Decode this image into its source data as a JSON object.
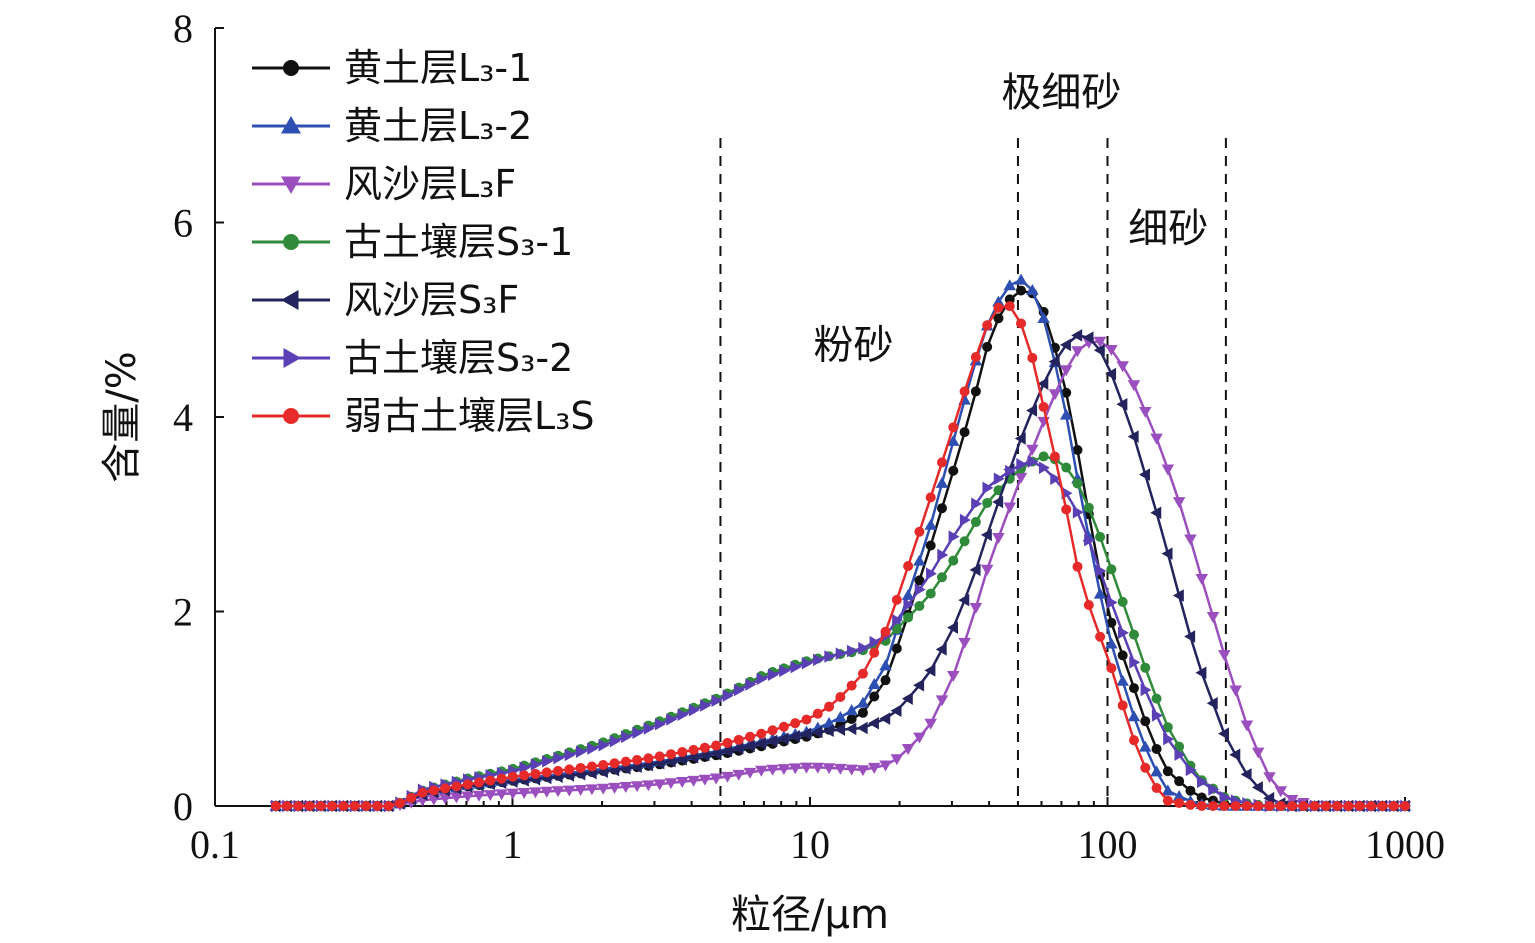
{
  "chart_data": {
    "type": "line",
    "title": "",
    "xlabel": "粒径/μm",
    "ylabel": "含量/%",
    "xscale": "log",
    "xlim": [
      0.1,
      1000
    ],
    "ylim": [
      0,
      8
    ],
    "xticks": [
      0.1,
      1,
      10,
      100,
      1000
    ],
    "xtick_labels": [
      "0.1",
      "1",
      "10",
      "100",
      "1000"
    ],
    "yticks": [
      0,
      2,
      4,
      6,
      8
    ],
    "ytick_labels": [
      "0",
      "2",
      "4",
      "6",
      "8"
    ],
    "grid": false,
    "legend_position": "top-left",
    "reference_lines": [
      {
        "x": 5,
        "style": "dashed"
      },
      {
        "x": 50,
        "style": "dashed"
      },
      {
        "x": 100,
        "style": "dashed"
      },
      {
        "x": 250,
        "style": "dashed"
      }
    ],
    "annotations": [
      {
        "text": "粉砂",
        "x": 14,
        "y": 4.6
      },
      {
        "text": "极细砂",
        "x": 70,
        "y": 7.2
      },
      {
        "text": "细砂",
        "x": 160,
        "y": 5.8
      }
    ],
    "series": [
      {
        "name": "黄土层L₃-1",
        "color": "#111111",
        "marker": "circle",
        "points": [
          [
            0.16,
            0
          ],
          [
            0.2,
            0
          ],
          [
            0.3,
            0
          ],
          [
            0.4,
            0
          ],
          [
            0.5,
            0.12
          ],
          [
            0.7,
            0.2
          ],
          [
            1,
            0.26
          ],
          [
            2,
            0.36
          ],
          [
            3,
            0.42
          ],
          [
            5,
            0.53
          ],
          [
            7,
            0.62
          ],
          [
            10,
            0.72
          ],
          [
            12,
            0.8
          ],
          [
            15,
            0.95
          ],
          [
            18,
            1.3
          ],
          [
            20,
            1.7
          ],
          [
            25,
            2.6
          ],
          [
            30,
            3.4
          ],
          [
            35,
            4.1
          ],
          [
            40,
            4.8
          ],
          [
            45,
            5.15
          ],
          [
            50,
            5.3
          ],
          [
            55,
            5.3
          ],
          [
            60,
            5.15
          ],
          [
            70,
            4.5
          ],
          [
            80,
            3.6
          ],
          [
            90,
            2.7
          ],
          [
            100,
            2.0
          ],
          [
            120,
            1.3
          ],
          [
            140,
            0.7
          ],
          [
            160,
            0.35
          ],
          [
            200,
            0.1
          ],
          [
            250,
            0.02
          ],
          [
            300,
            0
          ],
          [
            500,
            0
          ],
          [
            1000,
            0
          ]
        ]
      },
      {
        "name": "黄土层L₃-2",
        "color": "#2e4fb2",
        "marker": "triangle-up",
        "points": [
          [
            0.16,
            0
          ],
          [
            0.2,
            0
          ],
          [
            0.3,
            0
          ],
          [
            0.4,
            0
          ],
          [
            0.5,
            0.12
          ],
          [
            0.7,
            0.21
          ],
          [
            1,
            0.27
          ],
          [
            2,
            0.38
          ],
          [
            3,
            0.45
          ],
          [
            5,
            0.57
          ],
          [
            7,
            0.67
          ],
          [
            10,
            0.77
          ],
          [
            12,
            0.87
          ],
          [
            15,
            1.05
          ],
          [
            18,
            1.45
          ],
          [
            20,
            1.9
          ],
          [
            25,
            2.8
          ],
          [
            30,
            3.7
          ],
          [
            35,
            4.45
          ],
          [
            40,
            5.0
          ],
          [
            45,
            5.3
          ],
          [
            50,
            5.43
          ],
          [
            55,
            5.35
          ],
          [
            60,
            5.1
          ],
          [
            70,
            4.3
          ],
          [
            80,
            3.3
          ],
          [
            90,
            2.5
          ],
          [
            100,
            1.8
          ],
          [
            120,
            1.0
          ],
          [
            140,
            0.45
          ],
          [
            160,
            0.15
          ],
          [
            200,
            0.02
          ],
          [
            250,
            0
          ],
          [
            300,
            0
          ],
          [
            500,
            0
          ],
          [
            1000,
            0
          ]
        ]
      },
      {
        "name": "风沙层L₃F",
        "color": "#9b4fbf",
        "marker": "triangle-down",
        "points": [
          [
            0.16,
            0
          ],
          [
            0.2,
            0
          ],
          [
            0.3,
            0
          ],
          [
            0.4,
            0
          ],
          [
            0.5,
            0.06
          ],
          [
            0.7,
            0.1
          ],
          [
            1,
            0.13
          ],
          [
            2,
            0.18
          ],
          [
            3,
            0.22
          ],
          [
            5,
            0.29
          ],
          [
            7,
            0.37
          ],
          [
            10,
            0.4
          ],
          [
            12,
            0.39
          ],
          [
            15,
            0.37
          ],
          [
            18,
            0.42
          ],
          [
            20,
            0.5
          ],
          [
            25,
            0.8
          ],
          [
            30,
            1.3
          ],
          [
            35,
            1.9
          ],
          [
            40,
            2.5
          ],
          [
            50,
            3.3
          ],
          [
            60,
            3.9
          ],
          [
            70,
            4.4
          ],
          [
            80,
            4.7
          ],
          [
            90,
            4.8
          ],
          [
            100,
            4.75
          ],
          [
            120,
            4.4
          ],
          [
            150,
            3.7
          ],
          [
            180,
            3.0
          ],
          [
            200,
            2.5
          ],
          [
            250,
            1.5
          ],
          [
            300,
            0.75
          ],
          [
            350,
            0.3
          ],
          [
            400,
            0.08
          ],
          [
            500,
            0
          ],
          [
            1000,
            0
          ]
        ]
      },
      {
        "name": "古土壤层S₃-1",
        "color": "#2f8a3a",
        "marker": "circle",
        "points": [
          [
            0.16,
            0
          ],
          [
            0.2,
            0
          ],
          [
            0.3,
            0
          ],
          [
            0.4,
            0
          ],
          [
            0.5,
            0.16
          ],
          [
            0.7,
            0.28
          ],
          [
            1,
            0.38
          ],
          [
            2,
            0.65
          ],
          [
            3,
            0.85
          ],
          [
            5,
            1.12
          ],
          [
            7,
            1.35
          ],
          [
            10,
            1.5
          ],
          [
            12,
            1.55
          ],
          [
            15,
            1.6
          ],
          [
            18,
            1.7
          ],
          [
            20,
            1.85
          ],
          [
            25,
            2.15
          ],
          [
            30,
            2.5
          ],
          [
            35,
            2.85
          ],
          [
            40,
            3.15
          ],
          [
            50,
            3.45
          ],
          [
            60,
            3.6
          ],
          [
            70,
            3.55
          ],
          [
            80,
            3.3
          ],
          [
            90,
            2.95
          ],
          [
            100,
            2.55
          ],
          [
            120,
            1.85
          ],
          [
            140,
            1.25
          ],
          [
            160,
            0.8
          ],
          [
            200,
            0.3
          ],
          [
            250,
            0.08
          ],
          [
            300,
            0.02
          ],
          [
            350,
            0
          ],
          [
            500,
            0
          ],
          [
            1000,
            0
          ]
        ]
      },
      {
        "name": "风沙层S₃F",
        "color": "#23235e",
        "marker": "triangle-left",
        "points": [
          [
            0.16,
            0
          ],
          [
            0.2,
            0
          ],
          [
            0.3,
            0
          ],
          [
            0.4,
            0
          ],
          [
            0.5,
            0.12
          ],
          [
            0.7,
            0.2
          ],
          [
            1,
            0.25
          ],
          [
            2,
            0.35
          ],
          [
            3,
            0.43
          ],
          [
            5,
            0.55
          ],
          [
            7,
            0.65
          ],
          [
            10,
            0.75
          ],
          [
            12,
            0.78
          ],
          [
            15,
            0.8
          ],
          [
            18,
            0.9
          ],
          [
            20,
            1.0
          ],
          [
            25,
            1.35
          ],
          [
            30,
            1.8
          ],
          [
            35,
            2.3
          ],
          [
            40,
            2.85
          ],
          [
            50,
            3.7
          ],
          [
            60,
            4.3
          ],
          [
            70,
            4.7
          ],
          [
            80,
            4.85
          ],
          [
            90,
            4.8
          ],
          [
            100,
            4.55
          ],
          [
            120,
            3.9
          ],
          [
            150,
            2.9
          ],
          [
            180,
            2.0
          ],
          [
            200,
            1.5
          ],
          [
            250,
            0.7
          ],
          [
            300,
            0.28
          ],
          [
            350,
            0.08
          ],
          [
            400,
            0
          ],
          [
            500,
            0
          ],
          [
            1000,
            0
          ]
        ]
      },
      {
        "name": "古土壤层S₃-2",
        "color": "#5b3fb5",
        "marker": "triangle-right",
        "points": [
          [
            0.16,
            0
          ],
          [
            0.2,
            0
          ],
          [
            0.3,
            0
          ],
          [
            0.4,
            0
          ],
          [
            0.5,
            0.17
          ],
          [
            0.7,
            0.27
          ],
          [
            1,
            0.36
          ],
          [
            2,
            0.62
          ],
          [
            3,
            0.82
          ],
          [
            5,
            1.1
          ],
          [
            7,
            1.32
          ],
          [
            10,
            1.48
          ],
          [
            12,
            1.55
          ],
          [
            15,
            1.62
          ],
          [
            18,
            1.75
          ],
          [
            20,
            1.95
          ],
          [
            25,
            2.35
          ],
          [
            30,
            2.75
          ],
          [
            35,
            3.05
          ],
          [
            40,
            3.3
          ],
          [
            50,
            3.5
          ],
          [
            55,
            3.55
          ],
          [
            60,
            3.5
          ],
          [
            70,
            3.3
          ],
          [
            80,
            3.0
          ],
          [
            90,
            2.6
          ],
          [
            100,
            2.2
          ],
          [
            120,
            1.55
          ],
          [
            140,
            1.05
          ],
          [
            160,
            0.68
          ],
          [
            200,
            0.28
          ],
          [
            250,
            0.08
          ],
          [
            300,
            0.02
          ],
          [
            350,
            0
          ],
          [
            500,
            0
          ],
          [
            1000,
            0
          ]
        ]
      },
      {
        "name": "弱古土壤层L₃S",
        "color": "#e62a2a",
        "marker": "circle",
        "points": [
          [
            0.16,
            0
          ],
          [
            0.2,
            0
          ],
          [
            0.3,
            0
          ],
          [
            0.4,
            0
          ],
          [
            0.5,
            0.14
          ],
          [
            0.7,
            0.22
          ],
          [
            1,
            0.3
          ],
          [
            2,
            0.42
          ],
          [
            3,
            0.5
          ],
          [
            5,
            0.63
          ],
          [
            7,
            0.75
          ],
          [
            10,
            0.9
          ],
          [
            12,
            1.05
          ],
          [
            15,
            1.35
          ],
          [
            18,
            1.8
          ],
          [
            20,
            2.2
          ],
          [
            25,
            3.1
          ],
          [
            30,
            3.85
          ],
          [
            35,
            4.5
          ],
          [
            40,
            5.0
          ],
          [
            45,
            5.2
          ],
          [
            50,
            5.05
          ],
          [
            55,
            4.7
          ],
          [
            60,
            4.2
          ],
          [
            70,
            3.3
          ],
          [
            80,
            2.4
          ],
          [
            90,
            1.9
          ],
          [
            100,
            1.55
          ],
          [
            120,
            0.75
          ],
          [
            140,
            0.25
          ],
          [
            160,
            0.05
          ],
          [
            200,
            0
          ],
          [
            300,
            0
          ],
          [
            500,
            0
          ],
          [
            1000,
            0
          ]
        ]
      }
    ]
  }
}
